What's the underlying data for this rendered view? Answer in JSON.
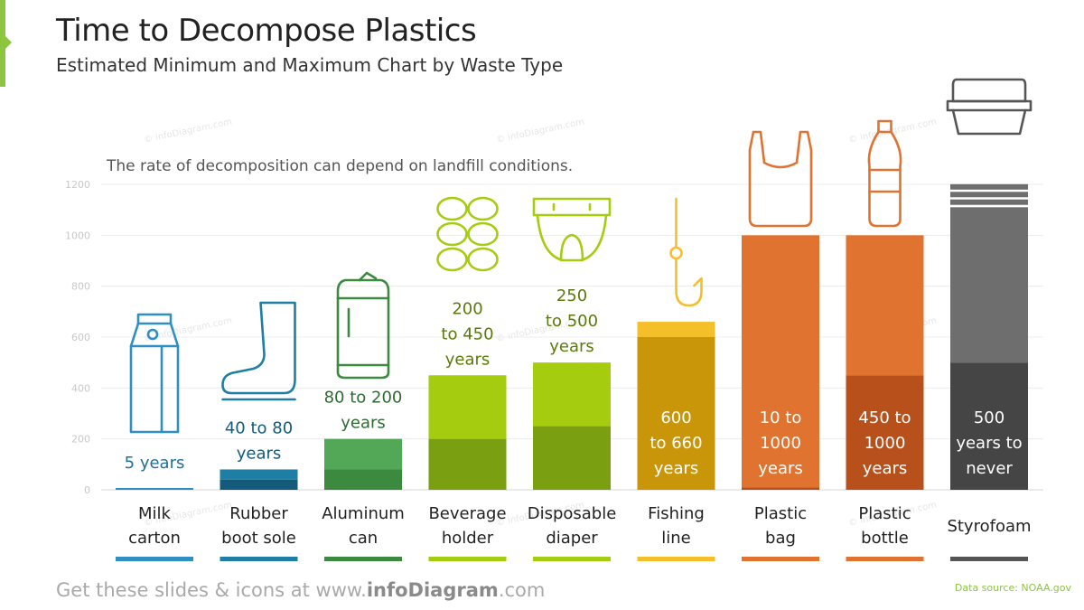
{
  "header": {
    "title": "Time to Decompose Plastics",
    "subtitle": "Estimated Minimum and Maximum Chart by Waste Type",
    "accent_color": "#8cc63f"
  },
  "note": "The rate of decomposition can depend on landfill conditions.",
  "footer": {
    "prefix": "Get these slides & icons at www.",
    "brand": "infoDiagram",
    "suffix": ".com",
    "source": "Data source: NOAA.gov"
  },
  "watermark": "© infoDiagram.com",
  "chart_data": {
    "type": "bar",
    "ylim": [
      0,
      1200
    ],
    "yticks": [
      "0",
      "200",
      "400",
      "600",
      "800",
      "1000",
      "1200"
    ],
    "grid": true,
    "categories": [
      {
        "label_lines": [
          "Milk",
          "carton"
        ],
        "min": 5,
        "max": 5,
        "range_lines": [
          "5 years"
        ],
        "label_inside": false,
        "icon": "milk-carton-icon",
        "color_dark": "#2f8fc3",
        "color_light": "#2f8fc3",
        "text_color": "#1f6f9a",
        "line_color": "#2f8fc3"
      },
      {
        "label_lines": [
          "Rubber",
          "boot sole"
        ],
        "min": 40,
        "max": 80,
        "range_lines": [
          "40 to 80",
          "years"
        ],
        "label_inside": false,
        "icon": "rubber-boot-icon",
        "color_dark": "#145a7a",
        "color_light": "#1e7ea3",
        "text_color": "#145a7a",
        "line_color": "#1e7ea3"
      },
      {
        "label_lines": [
          "Aluminum",
          "can"
        ],
        "min": 80,
        "max": 200,
        "range_lines": [
          "80 to 200",
          "years"
        ],
        "label_inside": false,
        "icon": "soda-can-icon",
        "color_dark": "#3b8a3f",
        "color_light": "#52a857",
        "text_color": "#2e6b31",
        "line_color": "#3b8a3f"
      },
      {
        "label_lines": [
          "Beverage",
          "holder"
        ],
        "min": 200,
        "max": 450,
        "range_lines": [
          "200",
          "to 450",
          "years"
        ],
        "label_inside": false,
        "icon": "six-pack-rings-icon",
        "color_dark": "#7aa012",
        "color_light": "#a6cc10",
        "text_color": "#5a7a0a",
        "line_color": "#a6cc10"
      },
      {
        "label_lines": [
          "Disposable",
          "diaper"
        ],
        "min": 250,
        "max": 500,
        "range_lines": [
          "250",
          "to 500",
          "years"
        ],
        "label_inside": false,
        "icon": "diaper-icon",
        "color_dark": "#7aa012",
        "color_light": "#a6cc10",
        "text_color": "#5a7a0a",
        "line_color": "#a6cc10"
      },
      {
        "label_lines": [
          "Fishing",
          "line"
        ],
        "min": 600,
        "max": 660,
        "range_lines": [
          "600",
          "to 660",
          "years"
        ],
        "label_inside": true,
        "icon": "fish-hook-icon",
        "color_dark": "#c9960a",
        "color_light": "#f5bf2a",
        "text_color": "#ffffff",
        "line_color": "#f5bf2a"
      },
      {
        "label_lines": [
          "Plastic",
          "bag"
        ],
        "min": 10,
        "max": 1000,
        "range_lines": [
          "10 to",
          "1000",
          "years"
        ],
        "label_inside": true,
        "icon": "plastic-bag-icon",
        "color_dark": "#b8501b",
        "color_light": "#e07330",
        "text_color": "#ffffff",
        "line_color": "#e07330"
      },
      {
        "label_lines": [
          "Plastic",
          "bottle"
        ],
        "min": 450,
        "max": 1000,
        "range_lines": [
          "450 to",
          "1000",
          "years"
        ],
        "label_inside": true,
        "icon": "plastic-bottle-icon",
        "color_dark": "#b8501b",
        "color_light": "#e07330",
        "text_color": "#ffffff",
        "line_color": "#e07330"
      },
      {
        "label_lines": [
          "Styrofoam"
        ],
        "min": 500,
        "max": null,
        "range_lines": [
          "500",
          "years to",
          "never"
        ],
        "label_inside": true,
        "icon": "foam-container-icon",
        "color_dark": "#454545",
        "color_light": "#6e6e6e",
        "text_color": "#ffffff",
        "line_color": "#555555"
      }
    ]
  }
}
